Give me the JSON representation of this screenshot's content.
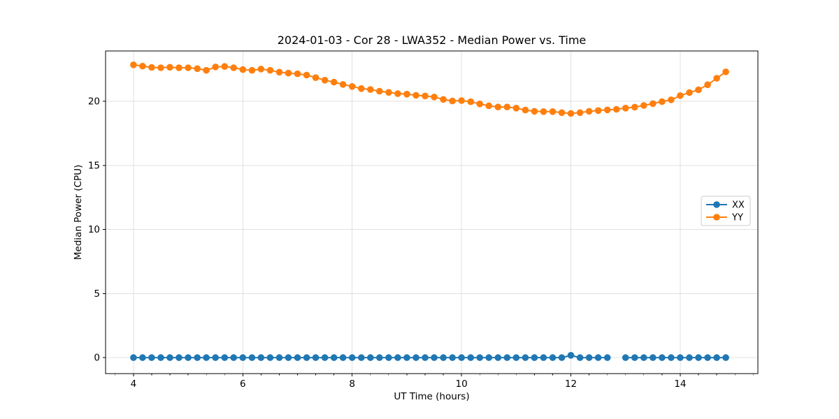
{
  "figure": {
    "background": "#ffffff",
    "title": "2024-01-03 - Cor 28 - LWA352 - Median Power vs. Time"
  },
  "chart_data": {
    "type": "line",
    "title": "2024-01-03 - Cor 28 - LWA352 - Median Power vs. Time",
    "xlabel": "UT Time (hours)",
    "ylabel": "Median Power (CPU)",
    "xlim": [
      3.49,
      15.42
    ],
    "ylim": [
      -1.25,
      23.93
    ],
    "x_major_ticks": [
      4,
      6,
      8,
      10,
      12,
      14
    ],
    "y_major_ticks": [
      0,
      5,
      10,
      15,
      20
    ],
    "x_minor_step_hours": 0.3333,
    "grid": true,
    "grid_color": "#e0e0e0",
    "spine_color": "#000000",
    "legend": {
      "position": "center-right",
      "entries": [
        "XX",
        "YY"
      ]
    },
    "x": [
      4.0,
      4.167,
      4.333,
      4.5,
      4.667,
      4.833,
      5.0,
      5.167,
      5.333,
      5.5,
      5.667,
      5.833,
      6.0,
      6.167,
      6.333,
      6.5,
      6.667,
      6.833,
      7.0,
      7.167,
      7.333,
      7.5,
      7.667,
      7.833,
      8.0,
      8.167,
      8.333,
      8.5,
      8.667,
      8.833,
      9.0,
      9.167,
      9.333,
      9.5,
      9.667,
      9.833,
      10.0,
      10.167,
      10.333,
      10.5,
      10.667,
      10.833,
      11.0,
      11.167,
      11.333,
      11.5,
      11.667,
      11.833,
      12.0,
      12.167,
      12.333,
      12.5,
      12.667,
      12.833,
      13.0,
      13.167,
      13.333,
      13.5,
      13.667,
      13.833,
      14.0,
      14.167,
      14.333,
      14.5,
      14.667,
      14.833
    ],
    "series": [
      {
        "name": "XX",
        "color": "#1f77b4",
        "values": [
          0,
          0,
          0,
          0,
          0,
          0,
          0,
          0,
          0,
          0,
          0,
          0,
          0,
          0,
          0,
          0,
          0,
          0,
          0,
          0,
          0,
          0,
          0,
          0,
          0,
          0,
          0,
          0,
          0,
          0,
          0,
          0,
          0,
          0,
          0,
          0,
          0,
          0,
          0,
          0,
          0,
          0,
          0,
          0,
          0,
          0,
          0,
          0,
          0.18,
          0,
          0,
          0,
          0,
          null,
          0,
          0,
          0,
          0,
          0,
          0,
          0,
          0,
          0,
          0,
          0,
          0
        ]
      },
      {
        "name": "YY",
        "color": "#ff7f0e",
        "values": [
          22.85,
          22.75,
          22.65,
          22.62,
          22.66,
          22.62,
          22.62,
          22.55,
          22.42,
          22.68,
          22.72,
          22.62,
          22.48,
          22.42,
          22.52,
          22.42,
          22.28,
          22.2,
          22.15,
          22.05,
          21.85,
          21.65,
          21.5,
          21.32,
          21.16,
          21.0,
          20.92,
          20.79,
          20.7,
          20.6,
          20.56,
          20.47,
          20.42,
          20.34,
          20.15,
          20.03,
          20.06,
          19.97,
          19.8,
          19.65,
          19.56,
          19.56,
          19.47,
          19.32,
          19.22,
          19.2,
          19.2,
          19.12,
          19.05,
          19.12,
          19.22,
          19.28,
          19.33,
          19.38,
          19.47,
          19.55,
          19.68,
          19.82,
          19.98,
          20.12,
          20.45,
          20.68,
          20.9,
          21.3,
          21.8,
          22.3
        ]
      }
    ]
  }
}
